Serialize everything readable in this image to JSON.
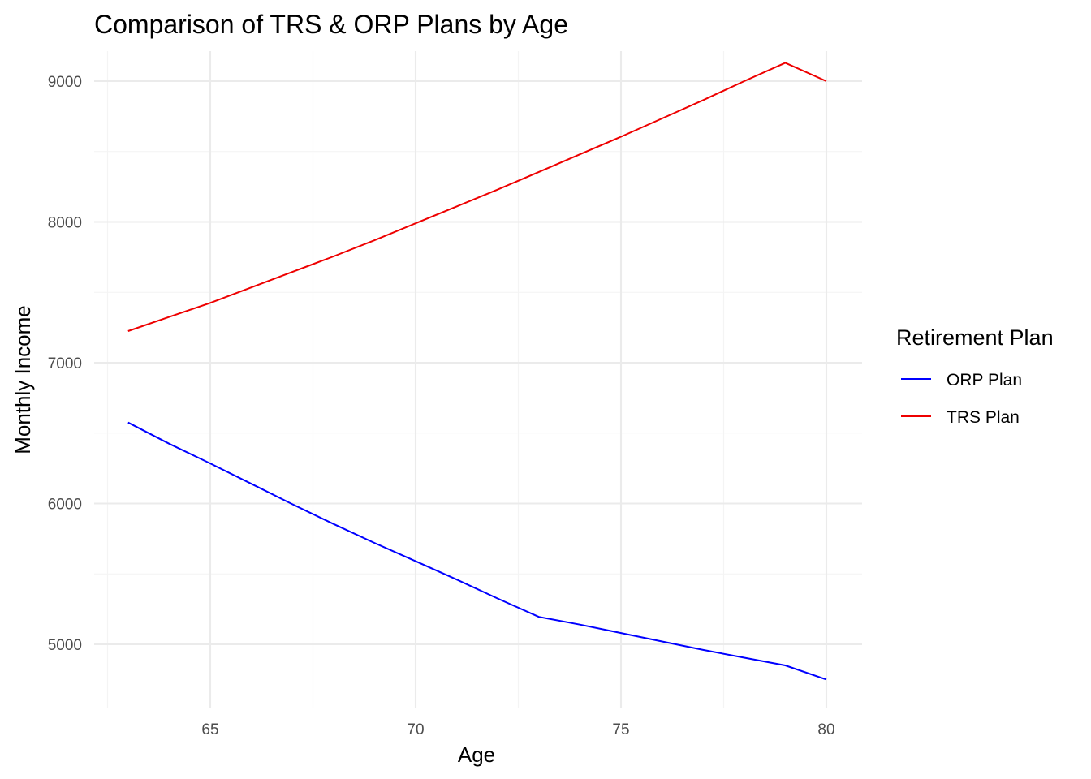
{
  "chart_data": {
    "type": "line",
    "title": "Comparison of TRS & ORP Plans by Age",
    "xlabel": "Age",
    "ylabel": "Monthly Income",
    "xlim": [
      62.5,
      81
    ],
    "ylim": [
      4550,
      9200
    ],
    "x_ticks": [
      65,
      70,
      75,
      80
    ],
    "x_tick_labels": [
      "65",
      "70",
      "75",
      "80"
    ],
    "x_minor_ticks": [
      62.5,
      67.5,
      72.5,
      77.5
    ],
    "y_ticks": [
      5000,
      6000,
      7000,
      8000,
      9000
    ],
    "y_tick_labels": [
      "5000",
      "6000",
      "7000",
      "8000",
      "9000"
    ],
    "y_minor_ticks": [
      4500,
      5500,
      6500,
      7500,
      8500
    ],
    "grid": true,
    "legend": {
      "title": "Retirement Plan",
      "position": "right"
    },
    "series": [
      {
        "name": "ORP Plan",
        "color": "#0000ff",
        "x": [
          63,
          64,
          65,
          66,
          67,
          68,
          69,
          70,
          71,
          72,
          73,
          74,
          75,
          76,
          77,
          78,
          79,
          80
        ],
        "y": [
          6575,
          6425,
          6285,
          6140,
          5995,
          5855,
          5720,
          5590,
          5460,
          5325,
          5195,
          5140,
          5080,
          5020,
          4960,
          4905,
          4850,
          4750
        ]
      },
      {
        "name": "TRS Plan",
        "color": "#ee0000",
        "x": [
          63,
          64,
          65,
          66,
          67,
          68,
          69,
          70,
          71,
          72,
          73,
          74,
          75,
          76,
          77,
          78,
          79,
          80
        ],
        "y": [
          7225,
          7325,
          7425,
          7535,
          7645,
          7755,
          7870,
          7990,
          8110,
          8230,
          8355,
          8480,
          8605,
          8735,
          8865,
          9000,
          9130,
          9000
        ]
      }
    ]
  }
}
